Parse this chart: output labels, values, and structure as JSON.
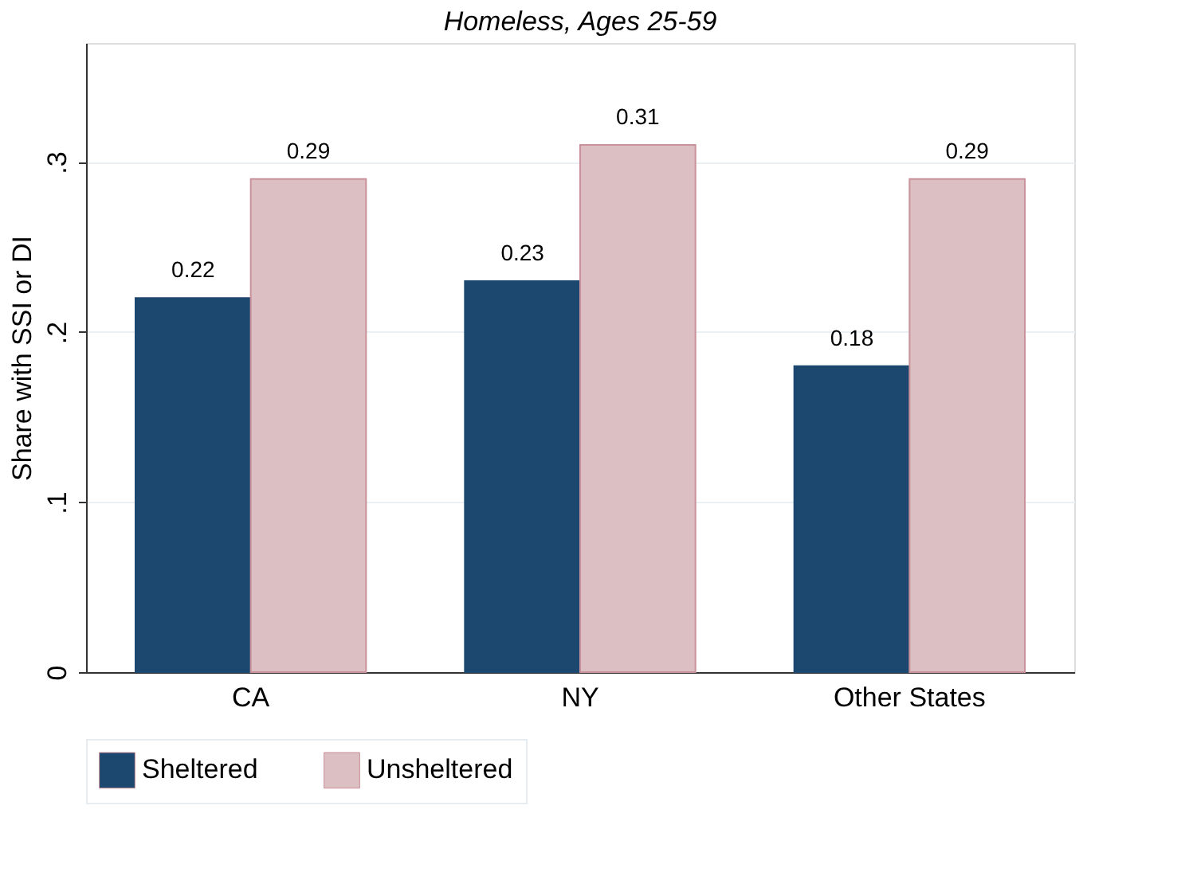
{
  "chart_data": {
    "type": "bar",
    "title": "Homeless, Ages 25-59",
    "ylabel": "Share with SSI or DI",
    "categories": [
      "CA",
      "NY",
      "Other States"
    ],
    "series": [
      {
        "name": "Sheltered",
        "color": "#1c476f",
        "values": [
          0.22,
          0.23,
          0.18
        ]
      },
      {
        "name": "Unsheltered",
        "color": "#dcbfc2",
        "values": [
          0.29,
          0.31,
          0.29
        ]
      }
    ],
    "ylim": [
      0,
      0.37
    ],
    "yticks": [
      {
        "value": 0,
        "label": "0"
      },
      {
        "value": 0.1,
        "label": ".1"
      },
      {
        "value": 0.2,
        "label": ".2"
      },
      {
        "value": 0.3,
        "label": ".3"
      }
    ],
    "grid": "y",
    "legend": "bottom",
    "data_labels": true
  }
}
